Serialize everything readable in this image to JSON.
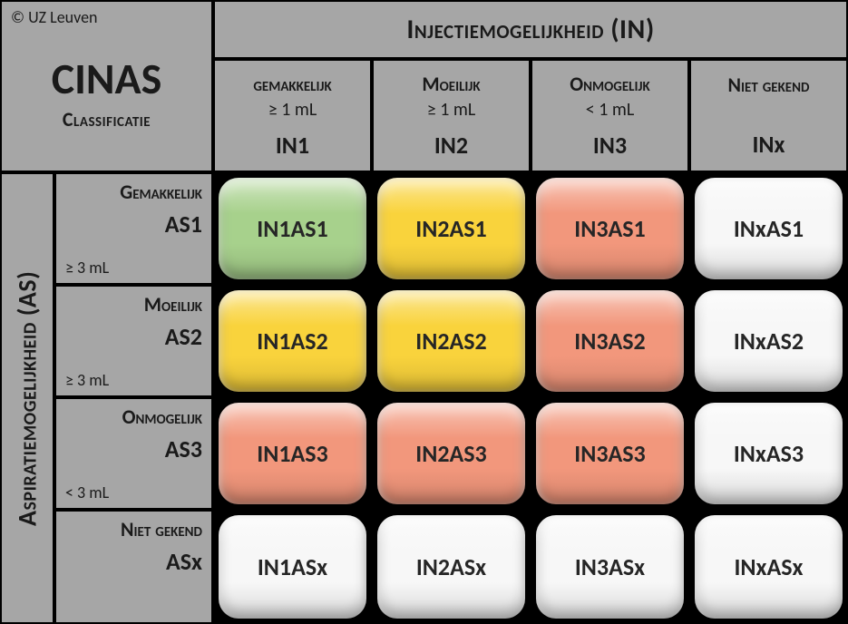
{
  "copyright": "© UZ Leuven",
  "title": "CINAS",
  "subtitle": "Classificatie",
  "axis_top": "Injectiemogelijkheid (IN)",
  "axis_left": "Aspiratiemogelijkheid (AS)",
  "colors": {
    "green": "#a7d18c",
    "yellow": "#f9d33c",
    "salmon": "#f2977c",
    "white": "#f7f7f7",
    "header_bg": "#a6a6a6"
  },
  "columns": [
    {
      "label": "gemakkelijk",
      "detail": "≥ 1 mL",
      "code": "IN1"
    },
    {
      "label": "Moeilijk",
      "detail": "≥ 1 mL",
      "code": "IN2"
    },
    {
      "label": "Onmogelijk",
      "detail": "< 1 mL",
      "code": "IN3"
    },
    {
      "label": "Niet gekend",
      "detail": "",
      "code": "INx"
    }
  ],
  "rows": [
    {
      "label": "Gemakkelijk",
      "detail": "≥ 3 mL",
      "code": "AS1"
    },
    {
      "label": "Moeilijk",
      "detail": "≥ 3 mL",
      "code": "AS2"
    },
    {
      "label": "Onmogelijk",
      "detail": "< 3 mL",
      "code": "AS3"
    },
    {
      "label": "Niet gekend",
      "detail": "",
      "code": "ASx"
    }
  ],
  "cells": [
    [
      {
        "label": "IN1AS1",
        "color": "green"
      },
      {
        "label": "IN2AS1",
        "color": "yellow"
      },
      {
        "label": "IN3AS1",
        "color": "salmon"
      },
      {
        "label": "INxAS1",
        "color": "white"
      }
    ],
    [
      {
        "label": "IN1AS2",
        "color": "yellow"
      },
      {
        "label": "IN2AS2",
        "color": "yellow"
      },
      {
        "label": "IN3AS2",
        "color": "salmon"
      },
      {
        "label": "INxAS2",
        "color": "white"
      }
    ],
    [
      {
        "label": "IN1AS3",
        "color": "salmon"
      },
      {
        "label": "IN2AS3",
        "color": "salmon"
      },
      {
        "label": "IN3AS3",
        "color": "salmon"
      },
      {
        "label": "INxAS3",
        "color": "white"
      }
    ],
    [
      {
        "label": "IN1ASx",
        "color": "white"
      },
      {
        "label": "IN2ASx",
        "color": "white"
      },
      {
        "label": "IN3ASx",
        "color": "white"
      },
      {
        "label": "INxASx",
        "color": "white"
      }
    ]
  ]
}
